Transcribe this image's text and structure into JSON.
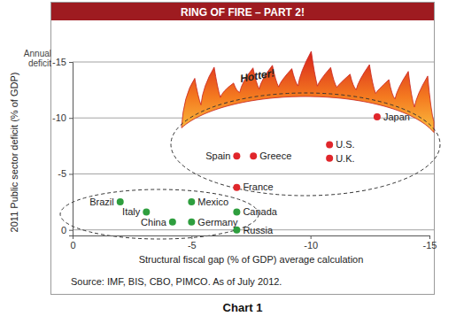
{
  "chart_data": {
    "type": "scatter",
    "title": "RING OF FIRE – PART 2!",
    "x_label": "Structural fiscal gap (% of GDP) average calculation",
    "y_label": "2011 Public sector deficit (% of GDP)",
    "source": "Source: IMF, BIS, CBO, PIMCO. As of July 2012.",
    "caption": "Chart 1",
    "annotations": [
      {
        "text": "Annual deficit"
      },
      {
        "text": "Hotter!"
      }
    ],
    "xlim": [
      0,
      -15
    ],
    "ylim": [
      0.5,
      -15
    ],
    "xticks": [
      0,
      -5,
      -10,
      -15
    ],
    "yticks": [
      0,
      -5,
      -10,
      -15
    ],
    "grid": true,
    "marker": "circle",
    "series": [
      {
        "color": "#2e9e3e",
        "labels": [
          "Brazil",
          "Italy",
          "China",
          "Mexico",
          "Germany",
          "Canada",
          "Russia"
        ],
        "x": [
          -2,
          -3.1,
          -4.2,
          -5,
          -5,
          -6.9,
          -6.9
        ],
        "values": [
          -2.5,
          -1.6,
          -0.7,
          -2.5,
          -0.7,
          -1.6,
          0
        ]
      },
      {
        "color": "#e0262b",
        "labels": [
          "Spain",
          "Greece",
          "France",
          "U.S.",
          "U.K.",
          "Japan"
        ],
        "x": [
          -6.9,
          -7.6,
          -6.9,
          -10.8,
          -10.8,
          -12.8
        ],
        "values": [
          -6.6,
          -6.6,
          -3.8,
          -7.6,
          -6.4,
          -10.1
        ]
      }
    ]
  }
}
